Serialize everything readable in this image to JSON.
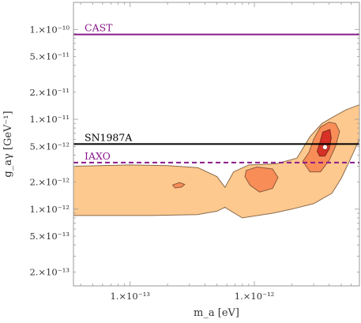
{
  "chart_data": {
    "type": "contour-exclusion",
    "xlabel": "m_a [eV]",
    "ylabel": "g_aγ [GeV⁻¹]",
    "xscale": "log",
    "yscale": "log",
    "xlim": [
      3.5e-14,
      7e-12
    ],
    "ylim": [
      1.4e-13,
      2e-10
    ],
    "x_tick_labels": [
      {
        "value": 1e-13,
        "label": "1.×10⁻¹³"
      },
      {
        "value": 1e-12,
        "label": "1.×10⁻¹²"
      }
    ],
    "y_tick_labels": [
      {
        "value": 2e-13,
        "label": "2.×10⁻¹³"
      },
      {
        "value": 5e-13,
        "label": "5.×10⁻¹³"
      },
      {
        "value": 1e-12,
        "label": "1.×10⁻¹²"
      },
      {
        "value": 2e-12,
        "label": "2.×10⁻¹²"
      },
      {
        "value": 5e-12,
        "label": "5.×10⁻¹²"
      },
      {
        "value": 1e-11,
        "label": "1.×10⁻¹¹"
      },
      {
        "value": 2e-11,
        "label": "2.×10⁻¹¹"
      },
      {
        "value": 5e-11,
        "label": "5.×10⁻¹¹"
      },
      {
        "value": 1e-10,
        "label": "1.×10⁻¹⁰"
      }
    ],
    "horizontal_lines": [
      {
        "name": "CAST",
        "y": 8.8e-11,
        "color": "#8b1a8b",
        "style": "solid"
      },
      {
        "name": "SN1987A",
        "y": 5.3e-12,
        "color": "#000000",
        "style": "solid"
      },
      {
        "name": "IAXO",
        "y": 3.3e-12,
        "color": "#8b1a8b",
        "style": "dashed"
      }
    ],
    "regions": [
      {
        "level": "outer",
        "color": "#fdc98f",
        "stroke": "#8a6a4a",
        "points": [
          [
            3.5e-14,
            3e-12
          ],
          [
            1e-13,
            3.1e-12
          ],
          [
            2e-13,
            3.05e-12
          ],
          [
            3.5e-13,
            2.9e-12
          ],
          [
            5e-13,
            2.3e-12
          ],
          [
            5.8e-13,
            1.75e-12
          ],
          [
            6.8e-13,
            2.6e-12
          ],
          [
            9e-13,
            3.1e-12
          ],
          [
            1.5e-12,
            3.2e-12
          ],
          [
            2.2e-12,
            3.7e-12
          ],
          [
            2.8e-12,
            6.4e-12
          ],
          [
            3.5e-12,
            9e-12
          ],
          [
            4.5e-12,
            1.1e-11
          ],
          [
            5.5e-12,
            1.28e-11
          ],
          [
            7e-12,
            1.45e-11
          ],
          [
            7e-12,
            6e-12
          ],
          [
            5.8e-12,
            3.4e-12
          ],
          [
            5e-12,
            2.2e-12
          ],
          [
            4.2e-12,
            1.5e-12
          ],
          [
            3e-12,
            1.15e-12
          ],
          [
            2e-12,
            1e-12
          ],
          [
            1.4e-12,
            9e-13
          ],
          [
            8e-13,
            8e-13
          ],
          [
            6.5e-13,
            9.5e-13
          ],
          [
            5.8e-13,
            1.05e-12
          ],
          [
            5e-13,
            9.5e-13
          ],
          [
            3.5e-13,
            8.7e-13
          ],
          [
            1.5e-13,
            8.5e-13
          ],
          [
            3.5e-14,
            8.5e-13
          ]
        ]
      },
      {
        "level": "inner",
        "color": "#f88d58",
        "stroke": "#8a5a3a",
        "points": [
          [
            8.6e-13,
            2.7e-12
          ],
          [
            1.05e-12,
            2.95e-12
          ],
          [
            1.4e-12,
            2.8e-12
          ],
          [
            1.55e-12,
            2.25e-12
          ],
          [
            1.4e-12,
            1.7e-12
          ],
          [
            1.1e-12,
            1.55e-12
          ],
          [
            9.2e-13,
            1.85e-12
          ],
          [
            8.4e-13,
            2.3e-12
          ]
        ]
      },
      {
        "level": "inner",
        "color": "#f88d58",
        "stroke": "#8a5a3a",
        "points": [
          [
            2.2e-13,
            1.86e-12
          ],
          [
            2.5e-13,
            1.98e-12
          ],
          [
            2.75e-13,
            1.88e-12
          ],
          [
            2.6e-13,
            1.76e-12
          ],
          [
            2.3e-13,
            1.72e-12
          ]
        ]
      },
      {
        "level": "inner",
        "color": "#f88d58",
        "stroke": "#8a5a3a",
        "points": [
          [
            2.45e-12,
            3.4e-12
          ],
          [
            2.75e-12,
            4.3e-12
          ],
          [
            3e-12,
            6e-12
          ],
          [
            3.4e-12,
            8.2e-12
          ],
          [
            4e-12,
            9.3e-12
          ],
          [
            4.5e-12,
            9e-12
          ],
          [
            4.85e-12,
            7.3e-12
          ],
          [
            4.5e-12,
            5e-12
          ],
          [
            4e-12,
            3.5e-12
          ],
          [
            3.4e-12,
            2.6e-12
          ],
          [
            2.8e-12,
            2.6e-12
          ]
        ]
      },
      {
        "level": "core",
        "color": "#d73027",
        "stroke": "#7a2a20",
        "points": [
          [
            3.2e-12,
            4.4e-12
          ],
          [
            3.4e-12,
            5.8e-12
          ],
          [
            3.55e-12,
            7.2e-12
          ],
          [
            4.05e-12,
            7.7e-12
          ],
          [
            4.15e-12,
            6.2e-12
          ],
          [
            4e-12,
            4.7e-12
          ],
          [
            3.7e-12,
            3.9e-12
          ],
          [
            3.35e-12,
            3.9e-12
          ]
        ]
      }
    ],
    "best_fit_point": {
      "x": 3.7e-12,
      "y": 4.9e-12,
      "marker": "white-dot"
    }
  }
}
